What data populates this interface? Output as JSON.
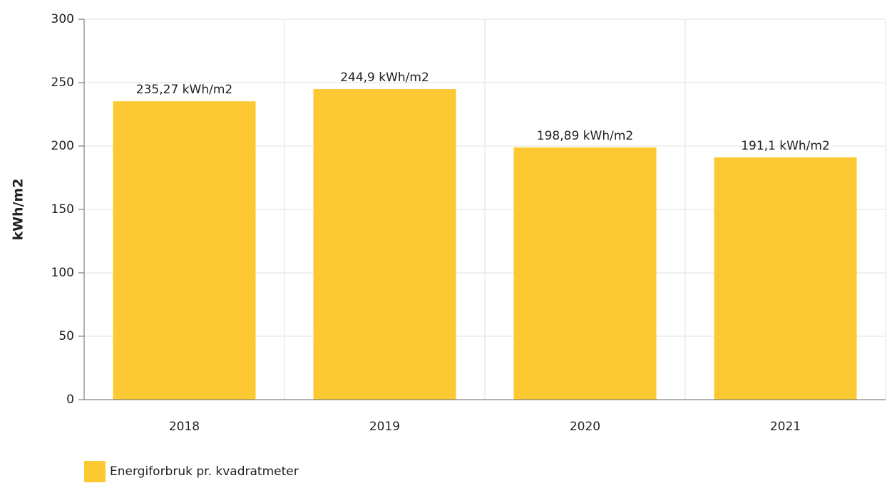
{
  "chart_data": {
    "type": "bar",
    "y_label": "kWh/m2",
    "categories": [
      "2018",
      "2019",
      "2020",
      "2021"
    ],
    "series": [
      {
        "name": "Energiforbruk pr. kvadratmeter",
        "color": "#fdc932",
        "values": [
          235.27,
          244.9,
          198.89,
          191.1
        ],
        "value_labels": [
          "235,27 kWh/m2",
          "244,9 kWh/m2",
          "198,89 kWh/m2",
          "191,1 kWh/m2"
        ]
      }
    ],
    "ylim": [
      0,
      300
    ],
    "yticks": [
      0,
      50,
      100,
      150,
      200,
      250,
      300
    ],
    "grid": true,
    "legend": "bottom-left"
  }
}
